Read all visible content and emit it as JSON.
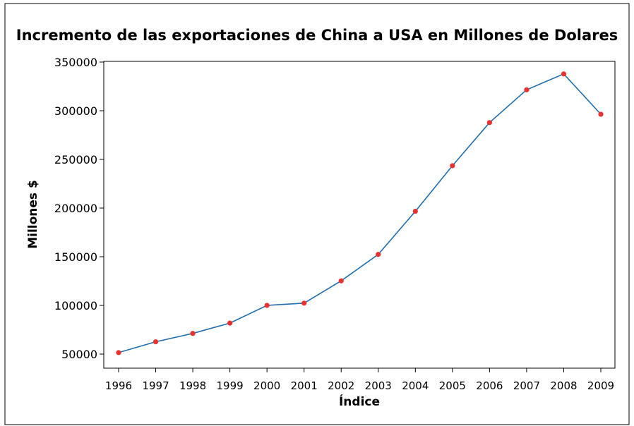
{
  "chart_data": {
    "type": "line",
    "title": "Incremento de las exportaciones de China a USA en Millones de Dolares",
    "xlabel": "Índice",
    "ylabel": "Millones $",
    "categories": [
      "1996",
      "1997",
      "1998",
      "1999",
      "2000",
      "2001",
      "2002",
      "2003",
      "2004",
      "2005",
      "2006",
      "2007",
      "2008",
      "2009"
    ],
    "series": [
      {
        "values": [
          51500,
          62600,
          71200,
          81800,
          100000,
          102300,
          125200,
          152400,
          196700,
          243500,
          287800,
          321500,
          337800,
          296400
        ]
      }
    ],
    "ylim": [
      50000,
      350000
    ],
    "yticks": [
      "50000",
      "100000",
      "150000",
      "200000",
      "250000",
      "300000",
      "350000"
    ],
    "line_color": "#1f6eab",
    "marker_color": "#e8322f",
    "grid": false,
    "legend": false
  }
}
